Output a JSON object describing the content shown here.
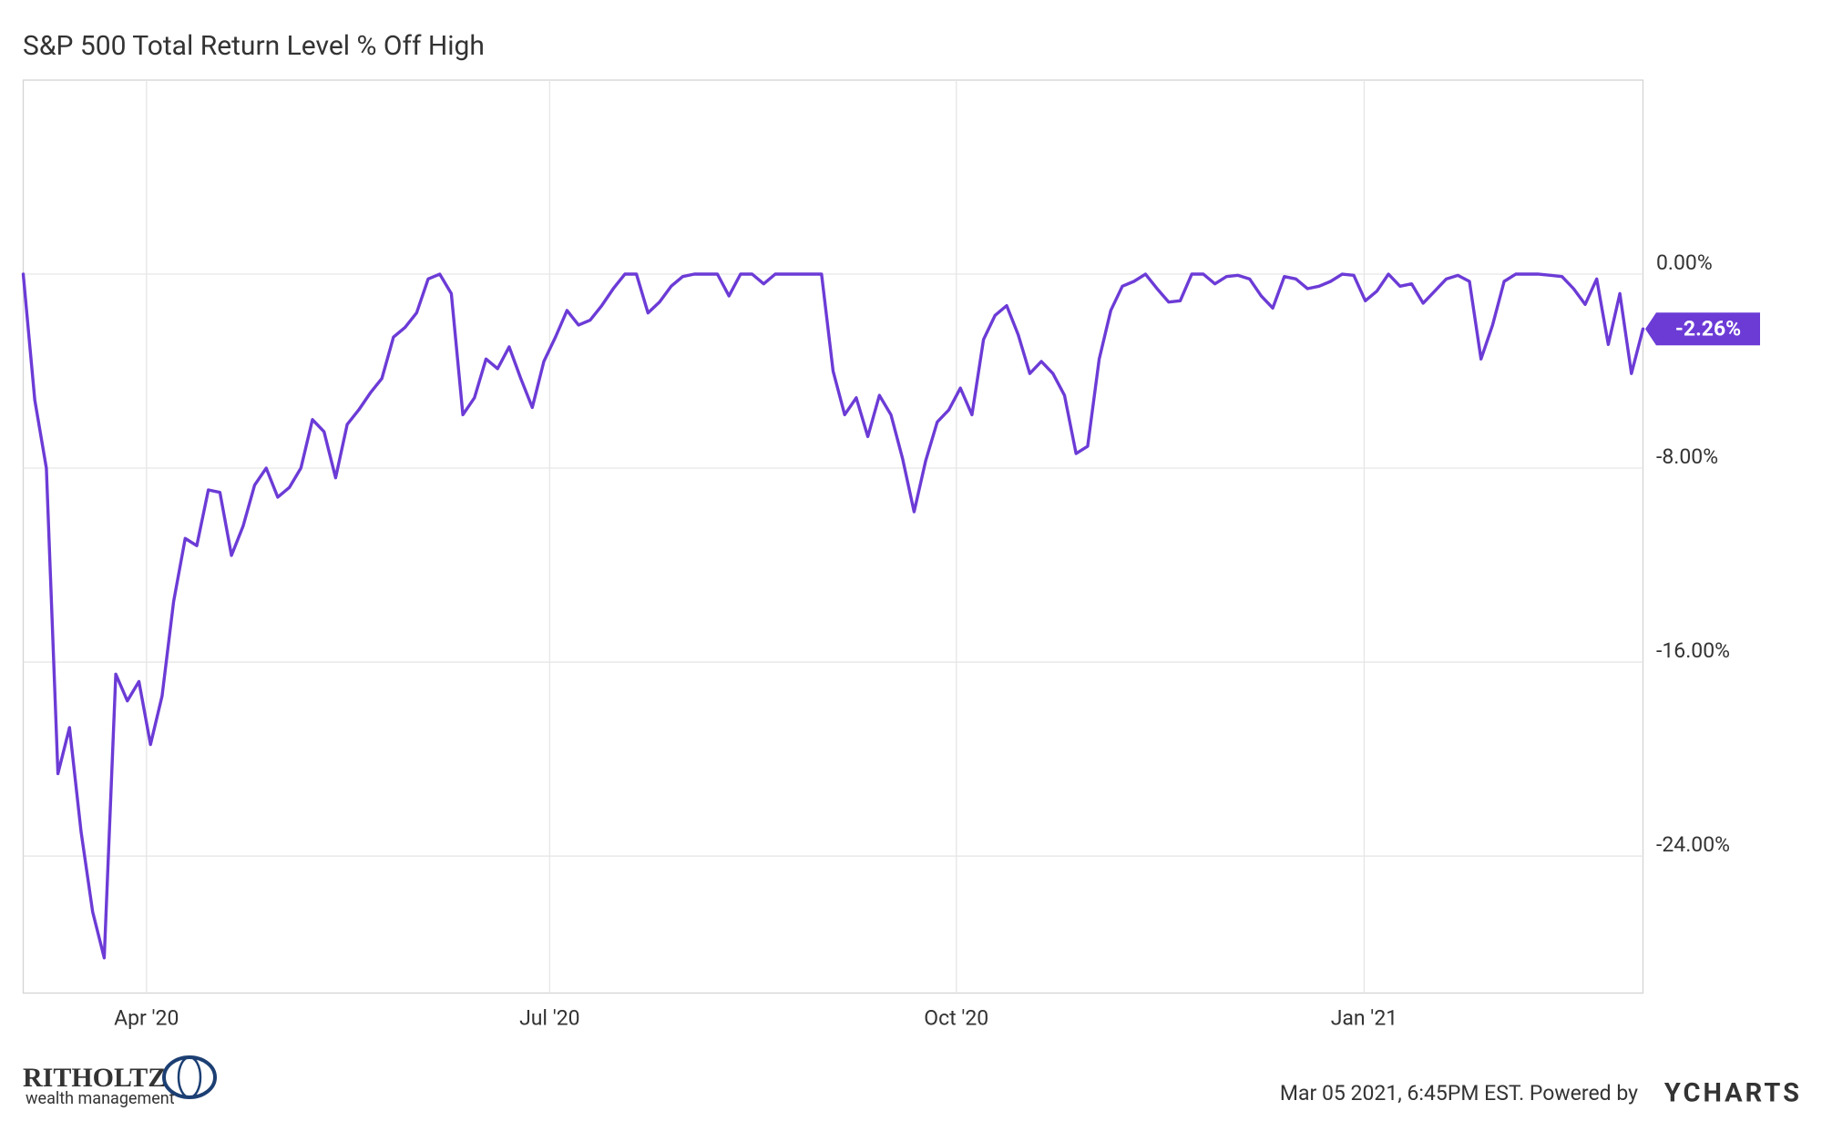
{
  "chart_data": {
    "type": "line",
    "title": "S&P 500 Total Return Level % Off High",
    "series": [
      {
        "name": "S&P 500 Total Return Level % Off High",
        "color": "#6c3bd6",
        "values": [
          0,
          -5.2,
          -8.0,
          -20.6,
          -18.7,
          -23.0,
          -26.3,
          -28.2,
          -16.5,
          -17.6,
          -16.8,
          -19.4,
          -17.4,
          -13.5,
          -10.9,
          -11.2,
          -8.9,
          -9.0,
          -11.6,
          -10.4,
          -8.7,
          -8.0,
          -9.2,
          -8.8,
          -8.0,
          -6.0,
          -6.5,
          -8.4,
          -6.2,
          -5.6,
          -4.9,
          -4.3,
          -2.6,
          -2.2,
          -1.6,
          -0.2,
          0,
          -0.8,
          -5.8,
          -5.1,
          -3.5,
          -3.9,
          -3.0,
          -4.3,
          -5.5,
          -3.6,
          -2.6,
          -1.5,
          -2.1,
          -1.9,
          -1.3,
          -0.6,
          0,
          0,
          -1.6,
          -1.15,
          -0.5,
          -0.1,
          0,
          0,
          0,
          -0.9,
          0,
          0,
          -0.4,
          0,
          0,
          0,
          0,
          0,
          -4.0,
          -5.8,
          -5.1,
          -6.7,
          -5.0,
          -5.8,
          -7.6,
          -9.8,
          -7.7,
          -6.1,
          -5.6,
          -4.7,
          -5.8,
          -2.7,
          -1.7,
          -1.3,
          -2.5,
          -4.1,
          -3.6,
          -4.1,
          -5.0,
          -7.4,
          -7.1,
          -3.5,
          -1.5,
          -0.5,
          -0.3,
          0,
          -0.6,
          -1.15,
          -1.1,
          0,
          0,
          -0.4,
          -0.1,
          -0.05,
          -0.2,
          -0.9,
          -1.4,
          -0.1,
          -0.2,
          -0.6,
          -0.5,
          -0.3,
          0,
          -0.05,
          -1.1,
          -0.7,
          0,
          -0.5,
          -0.4,
          -1.2,
          -0.7,
          -0.2,
          -0.05,
          -0.3,
          -3.5,
          -2.1,
          -0.3,
          0,
          0,
          0,
          -0.05,
          -0.1,
          -0.6,
          -1.25,
          -0.2,
          -2.9,
          -0.8,
          -4.1,
          -2.26
        ]
      }
    ],
    "callout": {
      "value": -2.26,
      "label": "-2.26%"
    },
    "xlim": [
      0,
      140
    ],
    "xticks": [
      {
        "value": 10.65,
        "label": "Apr '20"
      },
      {
        "value": 45.5,
        "label": "Jul '20"
      },
      {
        "value": 80.65,
        "label": "Oct '20"
      },
      {
        "value": 115.9,
        "label": "Jan '21"
      }
    ],
    "ylim": [
      -29.65,
      8
    ],
    "yticks": [
      {
        "value": 0,
        "label": "0.00%"
      },
      {
        "value": -8,
        "label": "-8.00%"
      },
      {
        "value": -16,
        "label": "-16.00%"
      },
      {
        "value": -24,
        "label": "-24.00%"
      }
    ],
    "grid": true
  },
  "footer": {
    "timestamp": "Mar 05 2021, 6:45PM EST. Powered by",
    "brand": "YCHARTS",
    "logo_name": "RITHOLTZ",
    "logo_sub": "wealth management"
  }
}
